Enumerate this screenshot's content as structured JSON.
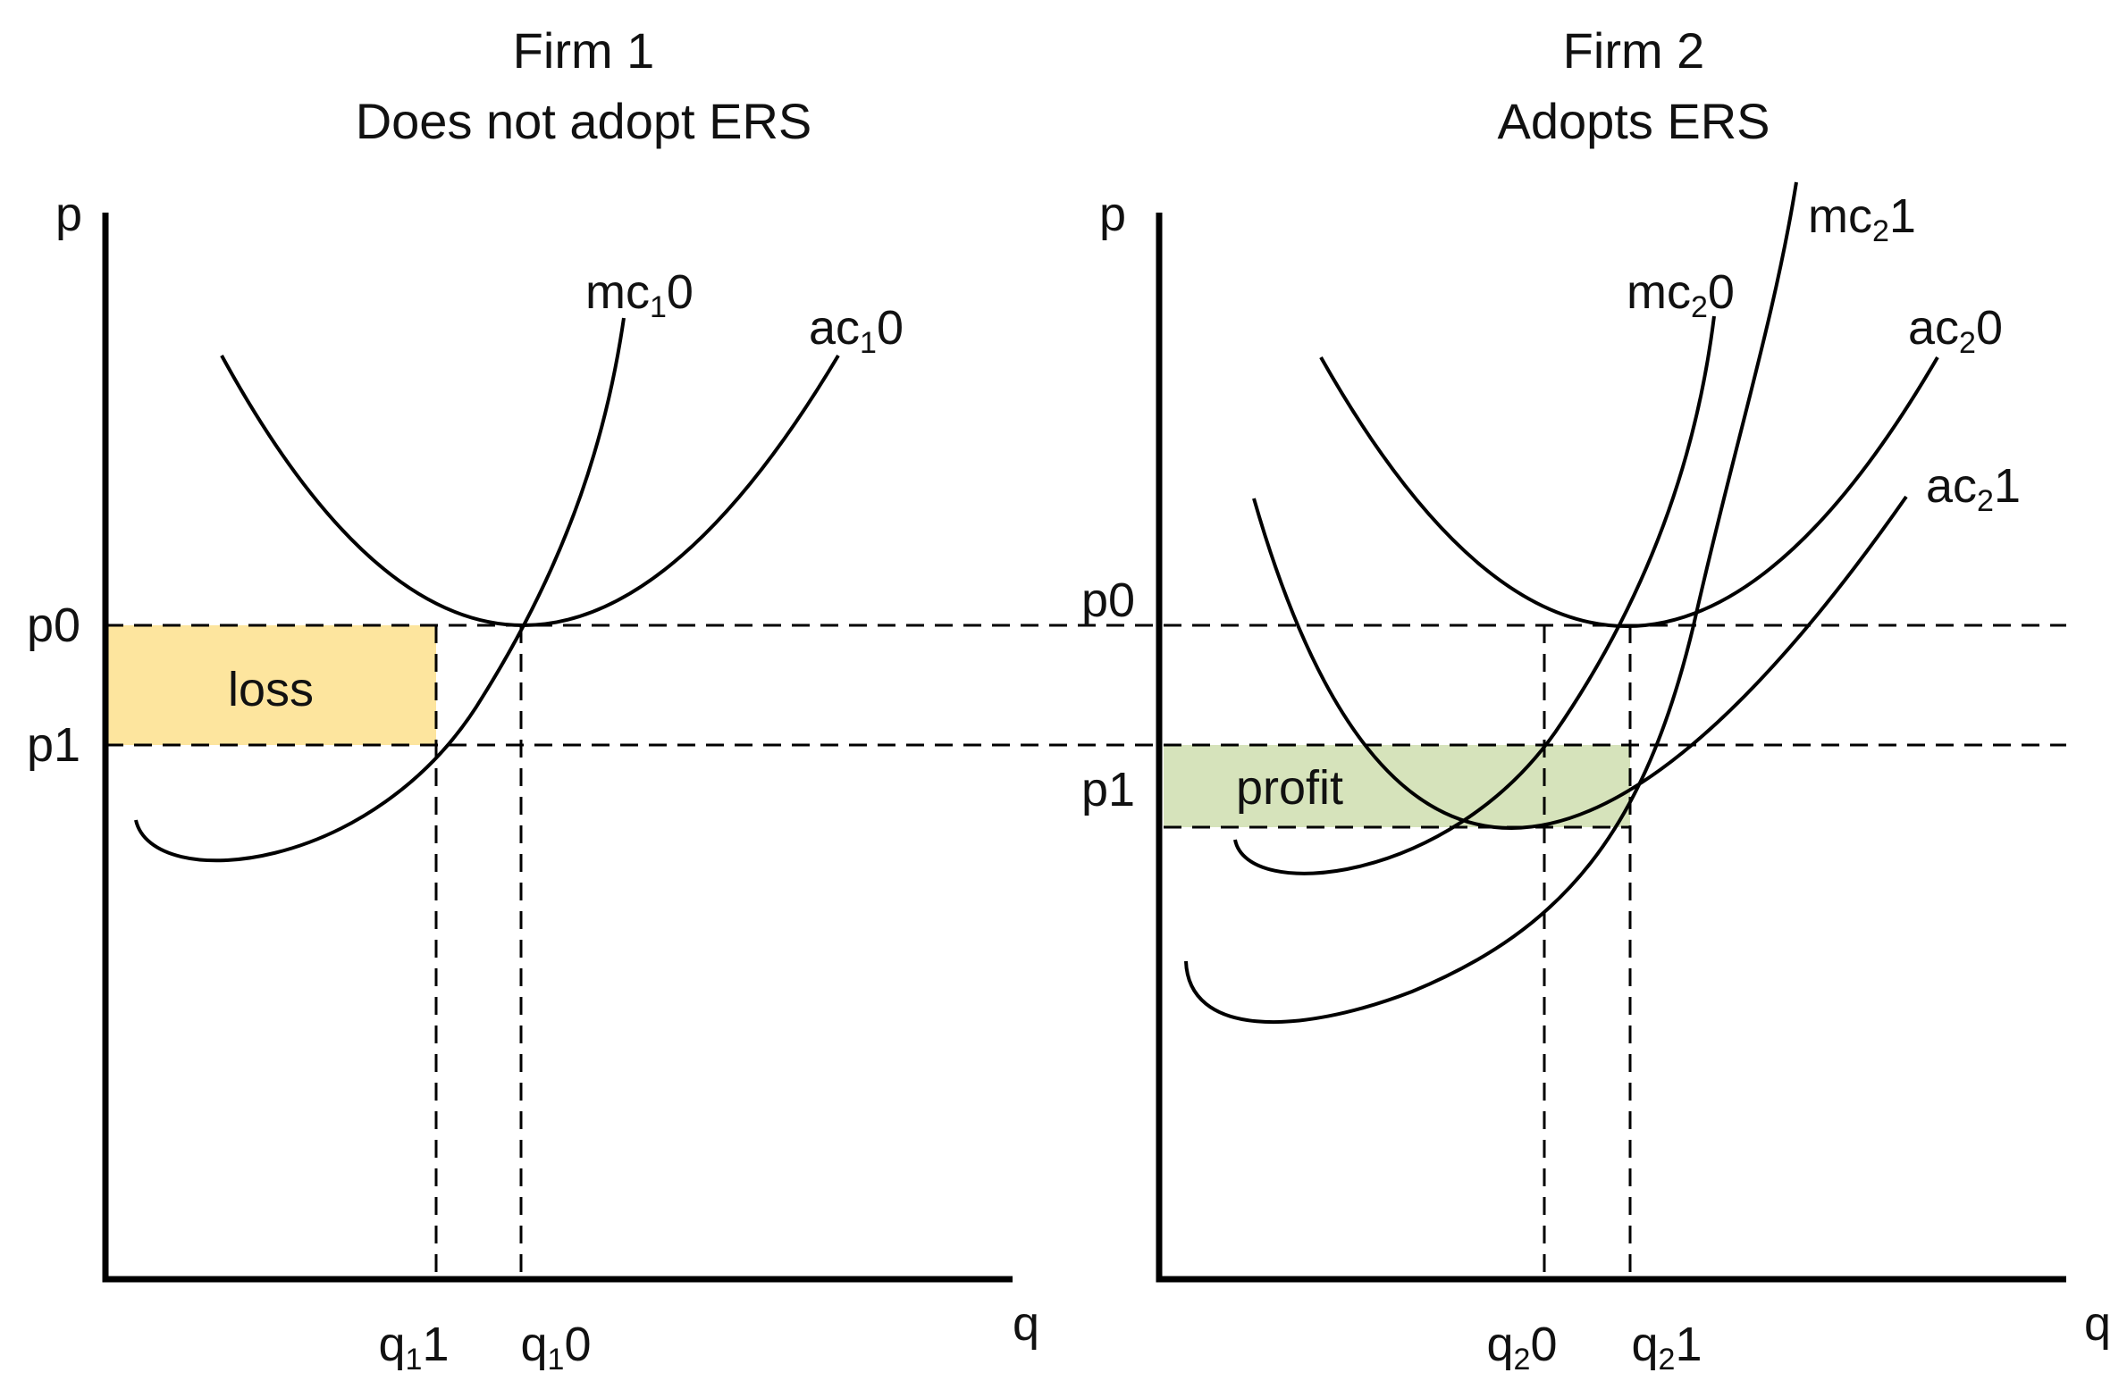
{
  "firm1": {
    "title": "Firm 1",
    "subtitle": "Does not adopt ERS",
    "y_axis": "p",
    "x_axis": "q",
    "p0_label": "p0",
    "p1_label": "p1",
    "mc_label": {
      "base": "mc",
      "sub": "1",
      "tail": "0"
    },
    "ac_label": {
      "base": "ac",
      "sub": "1",
      "tail": "0"
    },
    "q1_label": {
      "base": "q",
      "sub": "1",
      "tail": "1"
    },
    "q0_label": {
      "base": "q",
      "sub": "1",
      "tail": "0"
    },
    "area_label": "loss",
    "area_color": "#fde59e"
  },
  "firm2": {
    "title": "Firm 2",
    "subtitle": "Adopts ERS",
    "y_axis": "p",
    "x_axis": "q",
    "p0_label": "p0",
    "p1_label": "p1",
    "mc0_label": {
      "base": "mc",
      "sub": "2",
      "tail": "0"
    },
    "mc1_label": {
      "base": "mc",
      "sub": "2",
      "tail": "1"
    },
    "ac0_label": {
      "base": "ac",
      "sub": "2",
      "tail": "0"
    },
    "ac1_label": {
      "base": "ac",
      "sub": "2",
      "tail": "1"
    },
    "q0_label": {
      "base": "q",
      "sub": "2",
      "tail": "0"
    },
    "q1_label": {
      "base": "q",
      "sub": "2",
      "tail": "1"
    },
    "area_label": "profit",
    "area_color": "#d6e3bb"
  }
}
